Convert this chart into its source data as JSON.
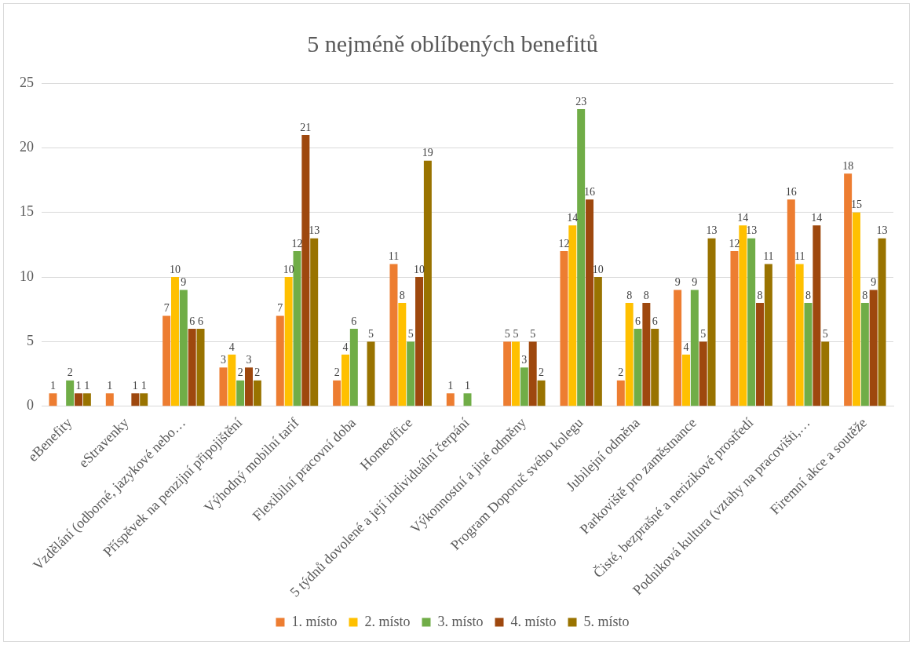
{
  "chart_data": {
    "type": "bar",
    "title": "5 nejméně oblíbených benefitů",
    "categories": [
      "eBenefity",
      "eStravenky",
      "Vzdělání (odborné, jazykové nebo…",
      "Příspěvek na penzijní připojištění",
      "Výhodný mobilní tarif",
      "Flexibilní pracovní doba",
      "Homeoffice",
      "5 týdnů dovolené a její individuální čerpání",
      "Výkonnostní a jiné odměny",
      "Program Doporuč svého kolegu",
      "Jubilejní odměna",
      "Parkoviště pro zaměstnance",
      "Čisté, bezprašné a nerizikové prostředí",
      "Podniková kultura (vztahy na pracovišti,…",
      "Firemní akce a soutěže"
    ],
    "series": [
      {
        "name": "1. místo",
        "color": "#ed7d31",
        "values": [
          1,
          1,
          7,
          3,
          7,
          2,
          11,
          1,
          5,
          12,
          2,
          9,
          12,
          16,
          18
        ]
      },
      {
        "name": "2. místo",
        "color": "#ffc000",
        "values": [
          null,
          null,
          10,
          4,
          10,
          4,
          8,
          null,
          5,
          14,
          8,
          4,
          14,
          11,
          15
        ]
      },
      {
        "name": "3. místo",
        "color": "#70ad47",
        "values": [
          2,
          null,
          9,
          2,
          12,
          6,
          5,
          1,
          3,
          23,
          6,
          9,
          13,
          8,
          8
        ]
      },
      {
        "name": "4. místo",
        "color": "#9e480e",
        "values": [
          1,
          1,
          6,
          3,
          21,
          null,
          10,
          null,
          5,
          16,
          8,
          5,
          8,
          14,
          9
        ]
      },
      {
        "name": "5. místo",
        "color": "#997300",
        "values": [
          1,
          1,
          6,
          2,
          13,
          5,
          19,
          null,
          2,
          10,
          6,
          13,
          11,
          5,
          13
        ]
      }
    ],
    "ylim": [
      0,
      25
    ],
    "yticks": [
      0,
      5,
      10,
      15,
      20,
      25
    ],
    "grid": "y",
    "legend": "bottom",
    "data_labels": true
  }
}
